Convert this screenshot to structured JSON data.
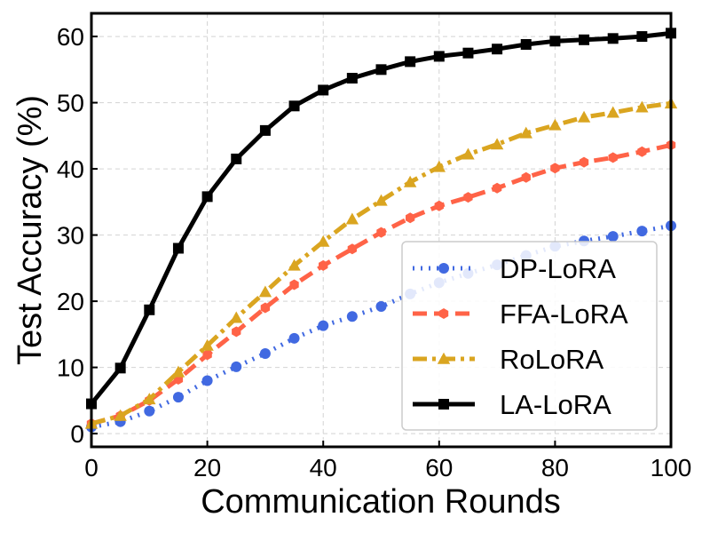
{
  "chart_data": {
    "type": "line",
    "xlabel": "Communication Rounds",
    "ylabel": "Test Accuracy (%)",
    "xlim": [
      0,
      100
    ],
    "ylim": [
      -2,
      63.5
    ],
    "xticks": [
      0,
      20,
      40,
      60,
      80,
      100
    ],
    "yticks": [
      0,
      10,
      20,
      30,
      40,
      50,
      60
    ],
    "grid": true,
    "legend_position": "lower-right",
    "x": [
      0,
      5,
      10,
      15,
      20,
      25,
      30,
      35,
      40,
      45,
      50,
      55,
      60,
      65,
      70,
      75,
      80,
      85,
      90,
      95,
      100
    ],
    "series": [
      {
        "name": "DP-LoRA",
        "color": "#4169e1",
        "line_style": "dotted",
        "marker": "circle",
        "values": [
          1.0,
          1.8,
          3.4,
          5.5,
          8.0,
          10.1,
          12.1,
          14.4,
          16.3,
          17.7,
          19.2,
          21.1,
          22.8,
          24.2,
          25.5,
          26.9,
          28.3,
          29.1,
          29.8,
          30.6,
          31.4
        ]
      },
      {
        "name": "FFA-LoRA",
        "color": "#ff6347",
        "line_style": "dashed",
        "marker": "hexagon",
        "values": [
          1.5,
          2.7,
          5.0,
          8.2,
          11.9,
          15.4,
          19.0,
          22.5,
          25.4,
          27.9,
          30.4,
          32.6,
          34.4,
          35.7,
          37.1,
          38.7,
          40.1,
          41.0,
          41.7,
          42.6,
          43.6
        ]
      },
      {
        "name": "RoLoRA",
        "color": "#daa520",
        "line_style": "dashdot",
        "marker": "triangle",
        "values": [
          1.5,
          2.7,
          5.2,
          9.3,
          13.3,
          17.5,
          21.4,
          25.4,
          29.0,
          32.4,
          35.2,
          38.0,
          40.3,
          42.2,
          43.7,
          45.4,
          46.6,
          47.8,
          48.5,
          49.3,
          49.9
        ]
      },
      {
        "name": "LA-LoRA",
        "color": "#000000",
        "line_style": "solid",
        "marker": "square",
        "values": [
          4.5,
          9.9,
          18.7,
          28.0,
          35.8,
          41.5,
          45.8,
          49.5,
          51.9,
          53.7,
          55.0,
          56.2,
          57.0,
          57.5,
          58.1,
          58.8,
          59.3,
          59.5,
          59.7,
          60.0,
          60.5
        ]
      }
    ]
  }
}
